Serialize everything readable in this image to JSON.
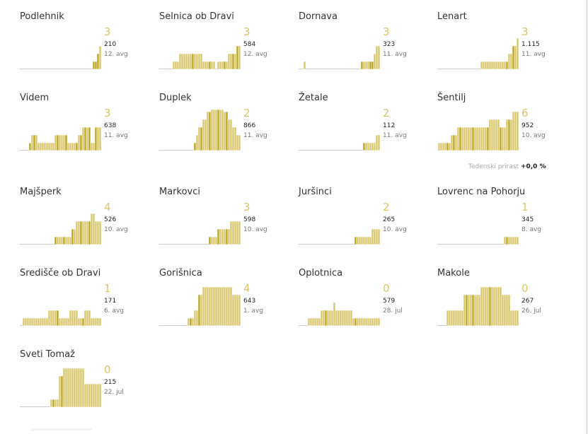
{
  "colors": {
    "bar": "#d8c76c",
    "bar_dark": "#b8a416",
    "bar_edge": "#ffffff",
    "baseline": "#cccccc",
    "count": "#d8c56a"
  },
  "weekly_label": "Tedenski prirast",
  "weekly_value": "+0,0 %",
  "chart_data": [
    {
      "type": "bar",
      "title": "Podlehnik",
      "count": "3",
      "total": "210",
      "date": "12. avg",
      "values": [
        0,
        0,
        0,
        0,
        0,
        0,
        0,
        0,
        0,
        0,
        0,
        0,
        0,
        0,
        0,
        0,
        0,
        0,
        0,
        0,
        0,
        0,
        0,
        0,
        0,
        0,
        0,
        0,
        0,
        0,
        0,
        0,
        1,
        1,
        2,
        3
      ],
      "highlight": [
        32,
        33,
        34
      ]
    },
    {
      "type": "bar",
      "title": "Selnica ob Dravi",
      "count": "3",
      "total": "584",
      "date": "12. avg",
      "values": [
        1,
        1,
        1,
        2,
        2,
        2,
        2,
        2,
        2,
        2,
        2,
        2,
        2,
        2,
        1,
        1,
        1,
        1,
        1,
        1,
        0,
        1,
        1,
        1,
        1,
        1,
        2,
        2,
        2,
        2,
        3,
        3
      ],
      "highlight": [
        9,
        17,
        24,
        28,
        30
      ]
    },
    {
      "type": "bar",
      "title": "Dornava",
      "count": "3",
      "total": "323",
      "date": "11. avg",
      "values": [
        1,
        0,
        0,
        0,
        0,
        0,
        0,
        0,
        0,
        0,
        0,
        0,
        0,
        0,
        0,
        0,
        0,
        0,
        0,
        0,
        0,
        0,
        0,
        0,
        0,
        0,
        0,
        1,
        1,
        1,
        1,
        1,
        1,
        2,
        3,
        3
      ],
      "highlight": [
        27,
        31,
        32
      ]
    },
    {
      "type": "bar",
      "title": "Lenart",
      "count": "3",
      "total": "1.115",
      "date": "11. avg",
      "values": [
        0,
        0,
        0,
        0,
        0,
        0,
        0,
        0,
        0,
        0,
        0,
        0,
        0,
        0,
        0,
        0,
        0,
        0,
        0,
        0,
        0,
        0,
        0,
        0,
        0,
        1,
        1,
        1,
        1,
        1,
        1,
        1,
        1,
        1,
        1,
        1,
        1,
        1,
        2,
        2,
        3,
        3,
        4
      ],
      "highlight": [
        37,
        40
      ]
    },
    {
      "type": "bar",
      "title": "Videm",
      "count": "3",
      "total": "638",
      "date": "11. avg",
      "values": [
        1,
        2,
        2,
        2,
        1,
        1,
        1,
        1,
        1,
        1,
        1,
        1,
        2,
        2,
        2,
        2,
        2,
        2,
        1,
        1,
        1,
        1,
        1,
        2,
        2,
        3,
        3,
        3,
        3,
        1,
        1,
        3,
        3,
        3
      ],
      "highlight": [
        0,
        2,
        13,
        17,
        22,
        24,
        26,
        28,
        31
      ]
    },
    {
      "type": "bar",
      "title": "Duplek",
      "count": "2",
      "total": "866",
      "date": "11. avg",
      "values": [
        0,
        0,
        0,
        0,
        0,
        0,
        0,
        1,
        2,
        3,
        3,
        4,
        4,
        5,
        5,
        6,
        6,
        6,
        6,
        6,
        6,
        5,
        5,
        4,
        4,
        3,
        3,
        2,
        2
      ],
      "highlight": [
        7,
        10,
        14,
        18,
        22
      ]
    },
    {
      "type": "bar",
      "title": "Žetale",
      "count": "2",
      "total": "112",
      "date": "11. avg",
      "values": [
        0,
        0,
        0,
        0,
        0,
        0,
        0,
        0,
        0,
        0,
        0,
        0,
        0,
        0,
        0,
        0,
        0,
        0,
        0,
        0,
        0,
        0,
        0,
        0,
        0,
        0,
        0,
        1,
        1,
        1,
        1,
        1,
        1,
        2,
        2
      ],
      "highlight": [
        27
      ]
    },
    {
      "type": "bar",
      "title": "Šentilj",
      "count": "6",
      "total": "952",
      "date": "10. avg",
      "values": [
        1,
        1,
        1,
        1,
        1,
        1,
        2,
        2,
        2,
        3,
        3,
        3,
        3,
        3,
        3,
        3,
        3,
        3,
        3,
        3,
        3,
        3,
        3,
        3,
        4,
        4,
        4,
        4,
        4,
        3,
        3,
        3,
        4,
        4,
        4,
        5,
        5,
        5
      ],
      "highlight": [
        4,
        7,
        10,
        16,
        23,
        29,
        33
      ]
    },
    {
      "type": "bar",
      "title": "Majšperk",
      "count": "4",
      "total": "526",
      "date": "10. avg",
      "values": [
        0,
        0,
        0,
        0,
        0,
        0,
        0,
        0,
        0,
        0,
        0,
        0,
        0,
        0,
        0,
        0,
        1,
        1,
        1,
        1,
        1,
        1,
        1,
        1,
        2,
        2,
        3,
        3,
        3,
        3,
        3,
        3,
        3,
        4,
        4,
        3,
        3,
        3
      ],
      "highlight": [
        16,
        20,
        24,
        28,
        32
      ]
    },
    {
      "type": "bar",
      "title": "Markovci",
      "count": "3",
      "total": "598",
      "date": "10. avg",
      "values": [
        0,
        0,
        0,
        0,
        0,
        0,
        0,
        0,
        0,
        0,
        0,
        0,
        0,
        0,
        0,
        0,
        0,
        0,
        0,
        0,
        0,
        0,
        1,
        1,
        1,
        1,
        2,
        2,
        2,
        2,
        2,
        2,
        3,
        3,
        3,
        3,
        3
      ],
      "highlight": [
        22,
        26,
        30
      ]
    },
    {
      "type": "bar",
      "title": "Juršinci",
      "count": "2",
      "total": "265",
      "date": "10. avg",
      "values": [
        0,
        0,
        0,
        0,
        0,
        0,
        0,
        0,
        0,
        0,
        0,
        0,
        0,
        0,
        0,
        0,
        0,
        0,
        0,
        0,
        0,
        0,
        0,
        0,
        1,
        1,
        1,
        1,
        1,
        1,
        1,
        1,
        2,
        2,
        2,
        2
      ],
      "highlight": [
        24
      ]
    },
    {
      "type": "bar",
      "title": "Lovrenc na Pohorju",
      "count": "1",
      "total": "345",
      "date": "8. avg",
      "values": [
        0,
        0,
        0,
        0,
        0,
        0,
        0,
        0,
        0,
        0,
        0,
        0,
        0,
        0,
        0,
        0,
        0,
        0,
        0,
        0,
        0,
        0,
        0,
        0,
        0,
        0,
        0,
        0,
        0,
        0,
        0,
        1,
        1,
        1,
        1,
        1,
        1,
        1
      ],
      "highlight": [
        32
      ]
    },
    {
      "type": "bar",
      "title": "Središče ob Dravi",
      "count": "1",
      "total": "171",
      "date": "6. avg",
      "values": [
        1,
        1,
        1,
        1,
        1,
        1,
        1,
        1,
        1,
        1,
        1,
        1,
        2,
        2,
        2,
        2,
        2,
        1,
        1,
        1,
        1,
        1,
        2,
        2,
        2,
        2,
        1,
        1,
        1,
        2,
        2,
        2,
        1,
        1,
        1,
        1,
        1
      ],
      "highlight": [
        16,
        28
      ]
    },
    {
      "type": "bar",
      "title": "Gorišnica",
      "count": "4",
      "total": "643",
      "date": "1. avg",
      "values": [
        0,
        0,
        0,
        0,
        0,
        0,
        0,
        0,
        0,
        0,
        0,
        0,
        0,
        0,
        0,
        0,
        1,
        1,
        1,
        2,
        2,
        4,
        4,
        5,
        5,
        5,
        5,
        5,
        5,
        5,
        5,
        5,
        5,
        5,
        5,
        5,
        5,
        4,
        4,
        4,
        4
      ],
      "highlight": [
        17,
        21
      ]
    },
    {
      "type": "bar",
      "title": "Oplotnica",
      "count": "0",
      "total": "579",
      "date": "28. jul",
      "values": [
        1,
        1,
        1,
        1,
        1,
        1,
        2,
        2,
        2,
        2,
        2,
        2,
        3,
        2,
        2,
        2,
        2,
        2,
        2,
        2,
        2,
        1,
        1,
        1,
        1,
        1,
        1,
        1,
        1,
        1,
        1,
        1,
        1,
        1
      ],
      "highlight": [
        8,
        22
      ]
    },
    {
      "type": "bar",
      "title": "Makole",
      "count": "0",
      "total": "267",
      "date": "26. jul",
      "values": [
        2,
        2,
        2,
        2,
        2,
        2,
        2,
        2,
        4,
        4,
        4,
        4,
        4,
        4,
        4,
        4,
        5,
        5,
        5,
        5,
        5,
        5,
        5,
        5,
        5,
        5,
        4,
        4,
        4,
        4,
        2,
        2,
        2,
        2
      ],
      "highlight": [
        9,
        12,
        20
      ]
    },
    {
      "type": "bar",
      "title": "Sveti Tomaž",
      "count": "0",
      "total": "215",
      "date": "22. jul",
      "values": [
        0,
        1,
        1,
        1,
        1,
        4,
        4,
        5,
        5,
        5,
        5,
        5,
        5,
        5,
        5,
        5,
        5,
        3,
        3,
        3,
        3,
        3,
        3,
        3,
        3
      ],
      "highlight": [
        2,
        6
      ]
    }
  ]
}
